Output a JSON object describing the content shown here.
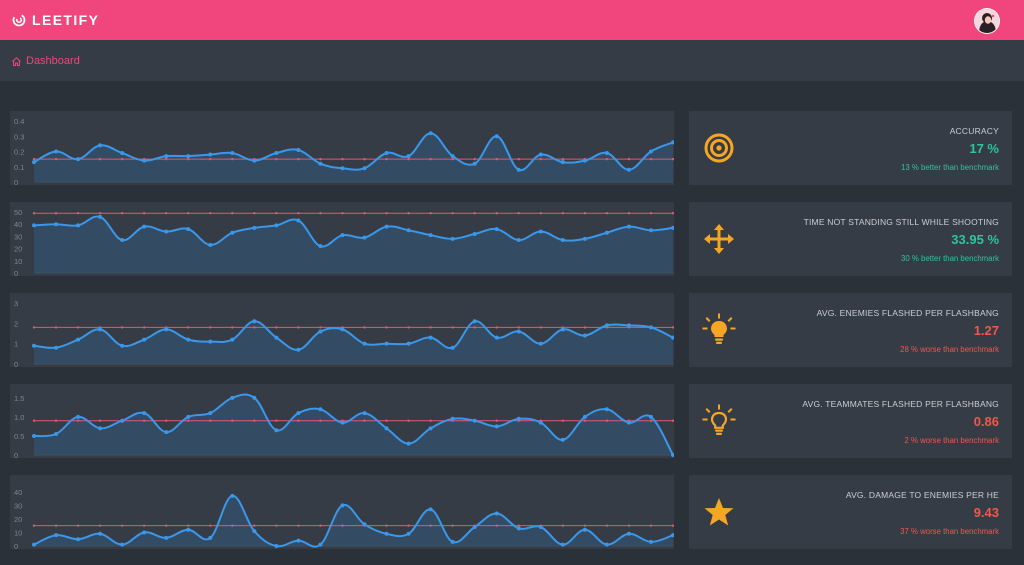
{
  "app": {
    "name": "LEETIFY"
  },
  "breadcrumb": {
    "label": "Dashboard"
  },
  "colors": {
    "brand": "#f0457d",
    "line": "#3a97ea",
    "benchmark": "#e8566d",
    "better": "#2ec4a0",
    "worse": "#f1574c",
    "icon": "#f6a623"
  },
  "stats": [
    {
      "title": "ACCURACY",
      "value": "17 %",
      "benchmark": "13 % better than benchmark",
      "status": "better",
      "icon": "target-icon"
    },
    {
      "title": "TIME NOT STANDING STILL WHILE SHOOTING",
      "value": "33.95 %",
      "benchmark": "30 % better than benchmark",
      "status": "better",
      "icon": "move-arrows-icon"
    },
    {
      "title": "AVG. ENEMIES FLASHED PER FLASHBANG",
      "value": "1.27",
      "benchmark": "28 % worse than benchmark",
      "status": "worse",
      "icon": "lightbulb-filled-icon"
    },
    {
      "title": "AVG. TEAMMATES FLASHED PER FLASHBANG",
      "value": "0.86",
      "benchmark": "2 % worse than benchmark",
      "status": "worse",
      "icon": "lightbulb-outline-icon"
    },
    {
      "title": "AVG. DAMAGE TO ENEMIES PER HE",
      "value": "9.43",
      "benchmark": "37 % worse than benchmark",
      "status": "worse",
      "icon": "star-icon"
    }
  ],
  "chart_data": [
    {
      "type": "line",
      "yticks": [
        "0",
        "0.1",
        "0.2",
        "0.3",
        "0.4"
      ],
      "ylim": [
        0,
        0.4
      ],
      "benchmark": 0.15,
      "values": [
        0.13,
        0.2,
        0.15,
        0.24,
        0.19,
        0.14,
        0.17,
        0.17,
        0.18,
        0.19,
        0.14,
        0.19,
        0.21,
        0.12,
        0.09,
        0.09,
        0.19,
        0.17,
        0.32,
        0.17,
        0.12,
        0.3,
        0.08,
        0.18,
        0.13,
        0.14,
        0.19,
        0.08,
        0.2,
        0.26
      ]
    },
    {
      "type": "line",
      "yticks": [
        "0",
        "10",
        "20",
        "30",
        "40",
        "50"
      ],
      "ylim": [
        0,
        50
      ],
      "benchmark": 49,
      "values": [
        39,
        40,
        39,
        46,
        27,
        38,
        34,
        36,
        23,
        33,
        37,
        39,
        43,
        22,
        31,
        29,
        38,
        35,
        31,
        28,
        32,
        36,
        27,
        34,
        27,
        28,
        33,
        38,
        35,
        37
      ]
    },
    {
      "type": "line",
      "yticks": [
        "0",
        "1",
        "2",
        "3"
      ],
      "ylim": [
        0,
        3
      ],
      "benchmark": 1.8,
      "values": [
        0.9,
        0.8,
        1.2,
        1.7,
        0.9,
        1.2,
        1.7,
        1.2,
        1.1,
        1.2,
        2.1,
        1.3,
        0.7,
        1.6,
        1.7,
        1.0,
        1.0,
        1.0,
        1.3,
        0.8,
        2.1,
        1.3,
        1.6,
        1.0,
        1.7,
        1.4,
        1.9,
        1.9,
        1.8,
        1.3
      ]
    },
    {
      "type": "line",
      "yticks": [
        "0",
        "0.5",
        "1.0",
        "1.5"
      ],
      "ylim": [
        0,
        1.6
      ],
      "benchmark": 0.9,
      "values": [
        0.5,
        0.55,
        1.0,
        0.7,
        0.9,
        1.1,
        0.6,
        1.0,
        1.1,
        1.5,
        1.5,
        0.65,
        1.1,
        1.2,
        0.85,
        1.1,
        0.7,
        0.3,
        0.7,
        0.95,
        0.9,
        0.75,
        0.95,
        0.85,
        0.4,
        1.0,
        1.2,
        0.85,
        1.0,
        0.0
      ]
    },
    {
      "type": "line",
      "yticks": [
        "0",
        "10",
        "20",
        "30",
        "40"
      ],
      "ylim": [
        0,
        45
      ],
      "benchmark": 15,
      "values": [
        1,
        8,
        5,
        9,
        1,
        10,
        6,
        12,
        6,
        37,
        11,
        0,
        4,
        1,
        30,
        16,
        9,
        9,
        27,
        3,
        14,
        24,
        13,
        14,
        1,
        12,
        1,
        9,
        3,
        8
      ]
    }
  ]
}
